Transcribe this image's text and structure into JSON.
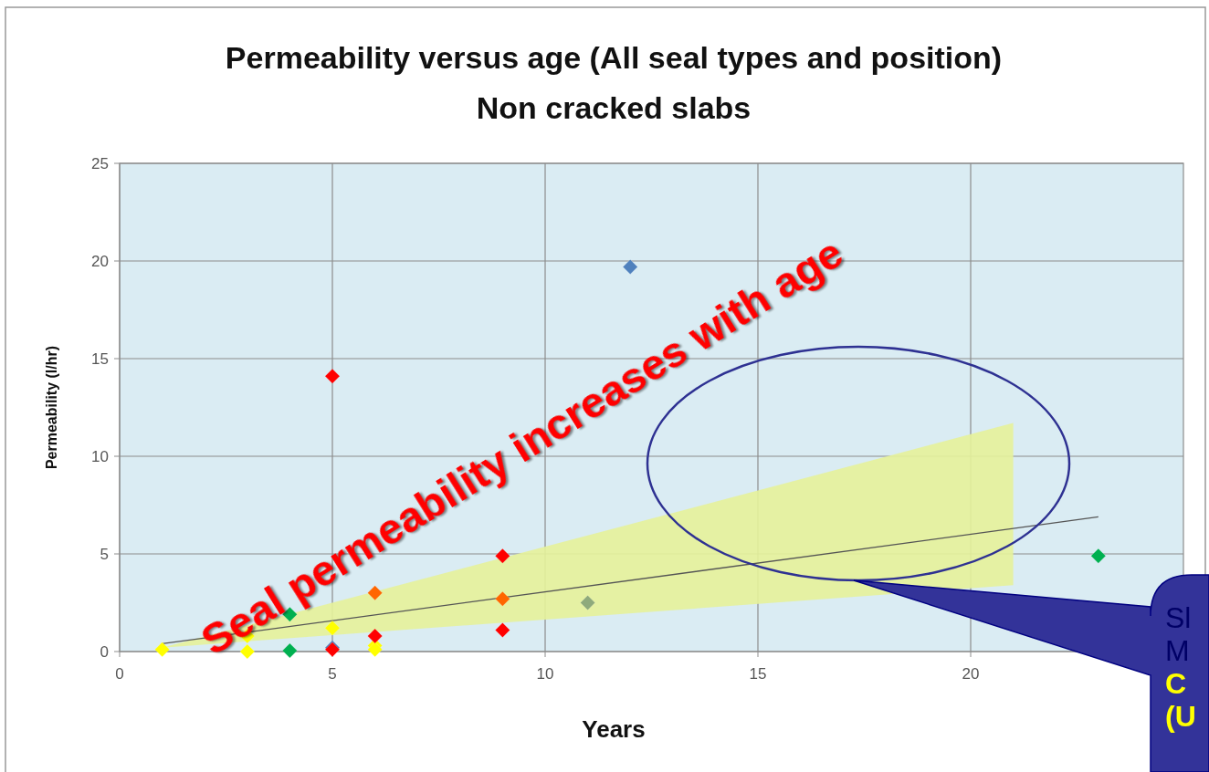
{
  "chart_data": {
    "type": "scatter",
    "title": "Permeability versus age  (All seal types and position)",
    "subtitle": "Non cracked slabs",
    "xlabel": "Years",
    "ylabel": "Permeability (l/hr)",
    "xlim": [
      0,
      25
    ],
    "xticks": [
      0,
      5,
      10,
      15,
      20
    ],
    "ylim": [
      0,
      25
    ],
    "yticks": [
      0,
      5,
      10,
      15,
      20,
      25
    ],
    "grid": true,
    "marker": "diamond",
    "series": [
      {
        "type": "line",
        "marker": "none",
        "color": "#555555",
        "x": [
          1,
          21,
          23
        ],
        "values": [
          0.4,
          6.3,
          6.9
        ],
        "lower": [
          0.2,
          3.4,
          null
        ],
        "upper": [
          0.2,
          11.7,
          null
        ]
      },
      {
        "color": "#ffff00",
        "x": [
          1,
          3,
          3,
          5,
          6,
          6
        ],
        "values": [
          0.1,
          0.8,
          0,
          1.2,
          0.3,
          0.1
        ]
      },
      {
        "color": "#00b050",
        "x": [
          4,
          4,
          23
        ],
        "values": [
          1.9,
          0.05,
          4.9
        ]
      },
      {
        "color": "#8faa7c",
        "x": [
          11
        ],
        "values": [
          2.5
        ]
      },
      {
        "color": "#4f81bd",
        "x": [
          12,
          5
        ],
        "values": [
          19.7,
          0.2
        ]
      },
      {
        "color": "#ff0000",
        "x": [
          5,
          5,
          6,
          9,
          9
        ],
        "values": [
          14.1,
          0.1,
          0.8,
          1.1,
          4.9
        ]
      },
      {
        "color": "#ff6600",
        "x": [
          6,
          9
        ],
        "values": [
          3.0,
          2.7
        ]
      }
    ],
    "annotations": [
      "Seal permeability increases with age",
      "Sl",
      "M",
      "C",
      "(U"
    ]
  }
}
